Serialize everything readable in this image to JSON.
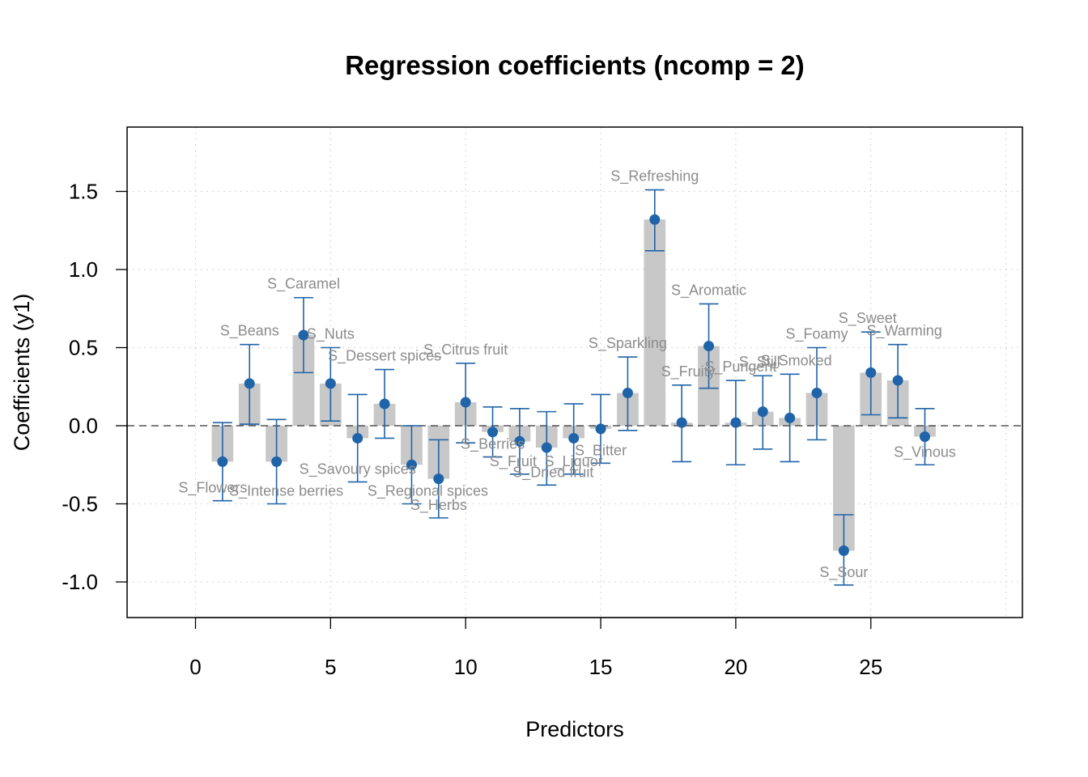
{
  "chart_data": {
    "type": "bar",
    "title": "Regression coefficients (ncomp = 2)",
    "xlabel": "Predictors",
    "ylabel": "Coefficients (y1)",
    "xlim": [
      -2.5,
      30.5
    ],
    "ylim": [
      -1.23,
      1.91
    ],
    "xticks": [
      0,
      5,
      10,
      15,
      20,
      25
    ],
    "yticks": [
      -1.0,
      -0.5,
      0.0,
      0.5,
      1.0,
      1.5
    ],
    "ytick_labels": [
      "-1.0",
      "-0.5",
      "0.0",
      "0.5",
      "1.0",
      "1.5"
    ],
    "grid": true,
    "reference_line": 0,
    "colors": {
      "bar": "#c8c8c8",
      "point": "#1f63a8",
      "label": "#8c8c8c",
      "grid": "#d9d9d9"
    },
    "points": [
      {
        "x": 1,
        "value": -0.23,
        "lower": -0.48,
        "upper": 0.02,
        "label": "S_Flowers"
      },
      {
        "x": 2,
        "value": 0.27,
        "lower": 0.01,
        "upper": 0.52,
        "label": "S_Beans"
      },
      {
        "x": 3,
        "value": -0.23,
        "lower": -0.5,
        "upper": 0.04,
        "label": "S_Intense berries"
      },
      {
        "x": 4,
        "value": 0.58,
        "lower": 0.34,
        "upper": 0.82,
        "label": "S_Caramel"
      },
      {
        "x": 5,
        "value": 0.27,
        "lower": 0.03,
        "upper": 0.5,
        "label": "S_Nuts"
      },
      {
        "x": 6,
        "value": -0.08,
        "lower": -0.36,
        "upper": 0.2,
        "label": "S_Savoury spices"
      },
      {
        "x": 7,
        "value": 0.14,
        "lower": -0.08,
        "upper": 0.36,
        "label": "S_Dessert spices"
      },
      {
        "x": 8,
        "value": -0.25,
        "lower": -0.5,
        "upper": 0.0,
        "label": "S_Regional spices"
      },
      {
        "x": 9,
        "value": -0.34,
        "lower": -0.59,
        "upper": -0.09,
        "label": "S_Herbs"
      },
      {
        "x": 10,
        "value": 0.15,
        "lower": -0.11,
        "upper": 0.4,
        "label": "S_Citrus fruit"
      },
      {
        "x": 11,
        "value": -0.04,
        "lower": -0.2,
        "upper": 0.12,
        "label": "S_Berries"
      },
      {
        "x": 12,
        "value": -0.1,
        "lower": -0.31,
        "upper": 0.11,
        "label": "S_Fruit"
      },
      {
        "x": 13,
        "value": -0.14,
        "lower": -0.38,
        "upper": 0.09,
        "label": "S_Dried fruit"
      },
      {
        "x": 14,
        "value": -0.08,
        "lower": -0.31,
        "upper": 0.14,
        "label": "S_Liquor"
      },
      {
        "x": 15,
        "value": -0.02,
        "lower": -0.24,
        "upper": 0.2,
        "label": "S_Bitter"
      },
      {
        "x": 16,
        "value": 0.21,
        "lower": -0.03,
        "upper": 0.44,
        "label": "S_Sparkling"
      },
      {
        "x": 17,
        "value": 1.32,
        "lower": 1.12,
        "upper": 1.51,
        "label": "S_Refreshing"
      },
      {
        "x": 18,
        "value": 0.02,
        "lower": -0.23,
        "upper": 0.26,
        "label": "S_Fruity"
      },
      {
        "x": 19,
        "value": 0.51,
        "lower": 0.24,
        "upper": 0.78,
        "label": "S_Aromatic"
      },
      {
        "x": 20,
        "value": 0.02,
        "lower": -0.25,
        "upper": 0.29,
        "label": "S_Pungent"
      },
      {
        "x": 21,
        "value": 0.09,
        "lower": -0.15,
        "upper": 0.32,
        "label": "S_Still"
      },
      {
        "x": 22,
        "value": 0.05,
        "lower": -0.23,
        "upper": 0.33,
        "label": "S_Smoked"
      },
      {
        "x": 23,
        "value": 0.21,
        "lower": -0.09,
        "upper": 0.5,
        "label": "S_Foamy"
      },
      {
        "x": 24,
        "value": -0.8,
        "lower": -1.02,
        "upper": -0.57,
        "label": "S_Sour"
      },
      {
        "x": 25,
        "value": 0.34,
        "lower": 0.07,
        "upper": 0.6,
        "label": "S_Sweet"
      },
      {
        "x": 26,
        "value": 0.29,
        "lower": 0.05,
        "upper": 0.52,
        "label": "S_Warming"
      },
      {
        "x": 27,
        "value": -0.07,
        "lower": -0.25,
        "upper": 0.11,
        "label": "S_Vinous"
      }
    ]
  }
}
